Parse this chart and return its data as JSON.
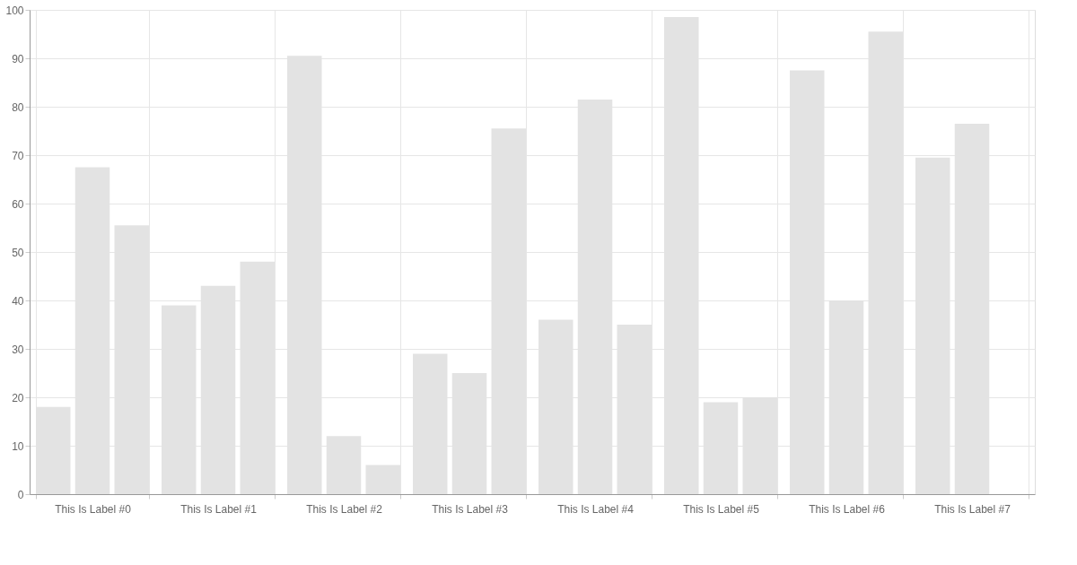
{
  "chart_data": {
    "type": "bar",
    "categories": [
      "This Is Label #0",
      "This Is Label #1",
      "This Is Label #2",
      "This Is Label #3",
      "This Is Label #4",
      "This Is Label #5",
      "This Is Label #6",
      "This Is Label #7"
    ],
    "series": [
      {
        "color": "#e3e3e3",
        "values": [
          18,
          39,
          90.5,
          29,
          36,
          98.5,
          87.5,
          69.5
        ]
      },
      {
        "color": "#e3e3e3",
        "values": [
          67.5,
          43,
          12,
          25,
          81.5,
          19,
          40,
          76.5
        ]
      },
      {
        "color": "#e3e3e3",
        "values": [
          55.5,
          48,
          6,
          75.5,
          35,
          20,
          95.5,
          null
        ]
      }
    ],
    "ylim": [
      0,
      100
    ],
    "yticks": [
      0,
      10,
      20,
      30,
      40,
      50,
      60,
      70,
      80,
      90,
      100
    ],
    "grid": true,
    "legend": false
  }
}
